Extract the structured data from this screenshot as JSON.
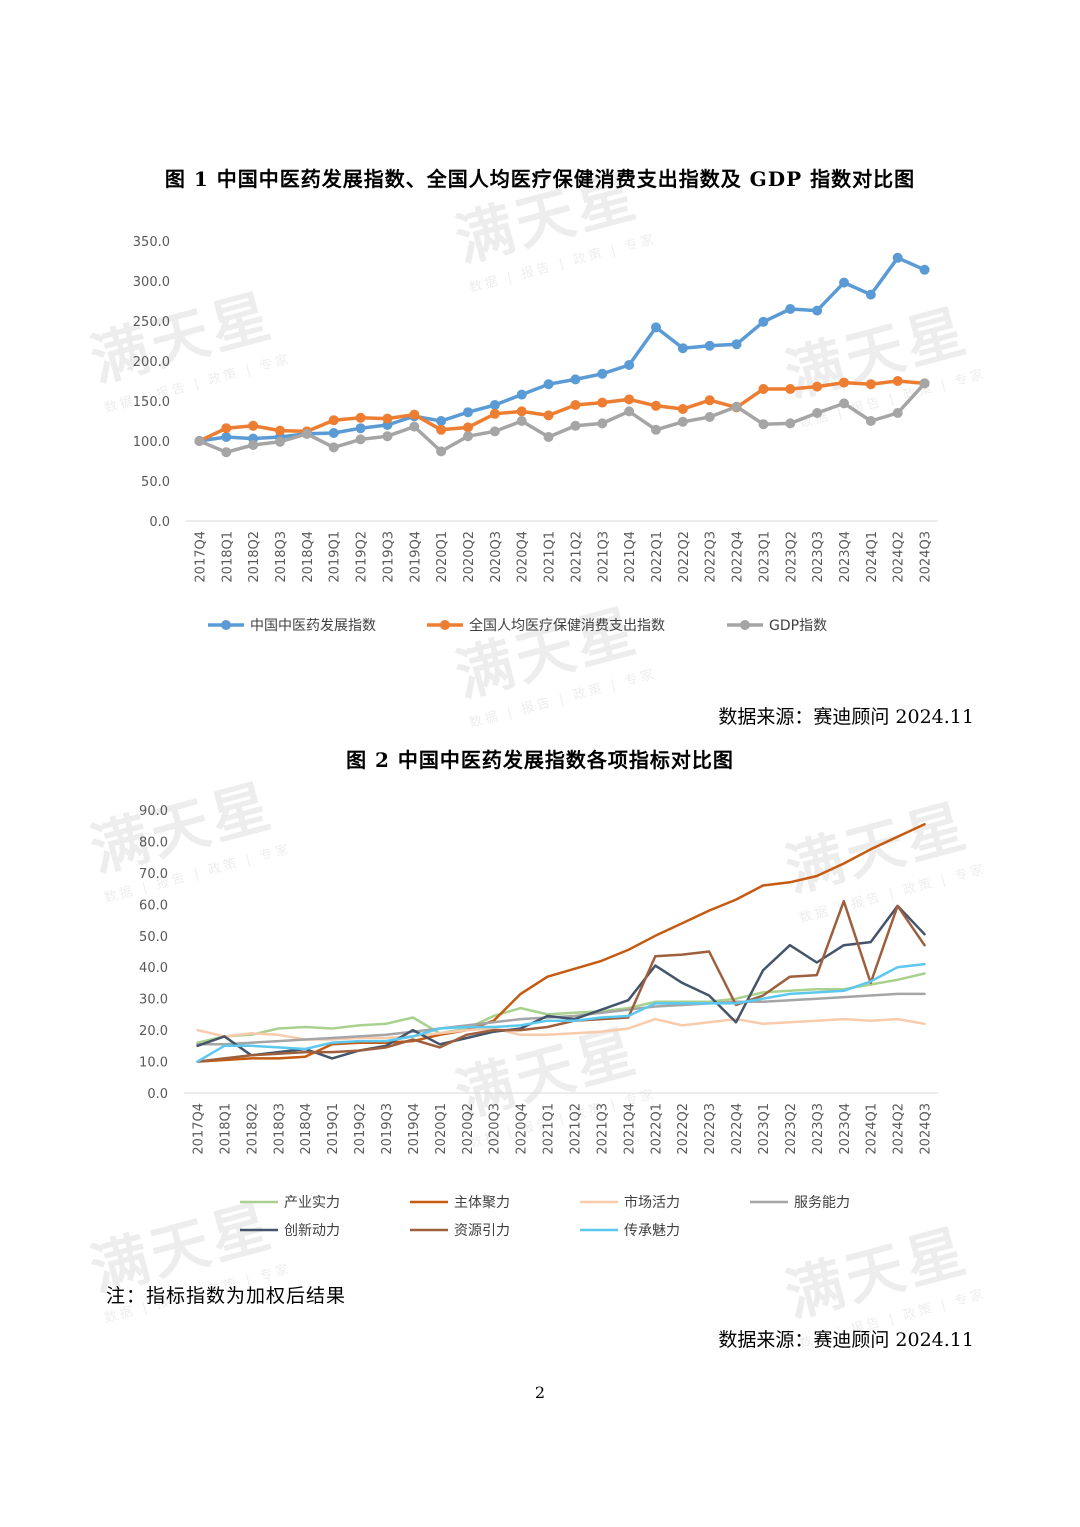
{
  "watermark": {
    "main": "满天星",
    "sub": "数据 | 报告 | 政策 | 专家"
  },
  "figure1": {
    "title": "图 1  中国中医药发展指数、全国人均医疗保健消费支出指数及 GDP 指数对比图",
    "source": "数据来源：赛迪顾问 2024.11"
  },
  "figure2": {
    "title": "图 2  中国中医药发展指数各项指标对比图",
    "note": "注：指标指数为加权后结果",
    "source": "数据来源：赛迪顾问 2024.11"
  },
  "page_number": "2",
  "chart_data": [
    {
      "type": "line",
      "title": "图 1  中国中医药发展指数、全国人均医疗保健消费支出指数及 GDP 指数对比图",
      "ylim": [
        0,
        350
      ],
      "yticks": [
        "0.0",
        "50.0",
        "100.0",
        "150.0",
        "200.0",
        "250.0",
        "300.0",
        "350.0"
      ],
      "ytick_values": [
        0,
        50,
        100,
        150,
        200,
        250,
        300,
        350
      ],
      "grid": "horizontal baseline only",
      "markers": true,
      "legend_position": "bottom",
      "categories": [
        "2017Q4",
        "2018Q1",
        "2018Q2",
        "2018Q3",
        "2018Q4",
        "2019Q1",
        "2019Q2",
        "2019Q3",
        "2019Q4",
        "2020Q1",
        "2020Q2",
        "2020Q3",
        "2020Q4",
        "2021Q1",
        "2021Q2",
        "2021Q3",
        "2021Q4",
        "2022Q1",
        "2022Q2",
        "2022Q3",
        "2022Q4",
        "2023Q1",
        "2023Q2",
        "2023Q3",
        "2023Q4",
        "2024Q1",
        "2024Q2",
        "2024Q3"
      ],
      "series": [
        {
          "name": "中国中医药发展指数",
          "color": "#5B9BD5",
          "values": [
            100,
            105,
            103,
            105,
            109,
            110,
            116,
            120,
            131,
            125,
            136,
            145,
            158,
            171,
            177,
            184,
            195,
            242,
            216,
            219,
            221,
            249,
            265,
            263,
            298,
            283,
            329,
            314
          ]
        },
        {
          "name": "全国人均医疗保健消费支出指数",
          "color": "#ED7D31",
          "values": [
            100,
            116,
            119,
            113,
            112,
            126,
            129,
            128,
            133,
            114,
            117,
            134,
            137,
            132,
            145,
            148,
            152,
            144,
            140,
            151,
            142,
            165,
            165,
            168,
            173,
            171,
            175,
            172
          ]
        },
        {
          "name": "GDP指数",
          "color": "#A5A5A5",
          "values": [
            100,
            86,
            95,
            99,
            109,
            92,
            102,
            106,
            118,
            87,
            106,
            112,
            125,
            105,
            119,
            122,
            137,
            114,
            124,
            130,
            143,
            121,
            122,
            135,
            147,
            125,
            135,
            172
          ]
        }
      ]
    },
    {
      "type": "line",
      "title": "图 2  中国中医药发展指数各项指标对比图",
      "ylim": [
        0,
        90
      ],
      "yticks": [
        "0.0",
        "10.0",
        "20.0",
        "30.0",
        "40.0",
        "50.0",
        "60.0",
        "70.0",
        "80.0",
        "90.0"
      ],
      "ytick_values": [
        0,
        10,
        20,
        30,
        40,
        50,
        60,
        70,
        80,
        90
      ],
      "grid": "horizontal baseline only",
      "markers": false,
      "legend_position": "bottom",
      "categories": [
        "2017Q4",
        "2018Q1",
        "2018Q2",
        "2018Q3",
        "2018Q4",
        "2019Q1",
        "2019Q2",
        "2019Q3",
        "2019Q4",
        "2020Q1",
        "2020Q2",
        "2020Q3",
        "2020Q4",
        "2021Q1",
        "2021Q2",
        "2021Q3",
        "2021Q4",
        "2022Q1",
        "2022Q2",
        "2022Q3",
        "2022Q4",
        "2023Q1",
        "2023Q2",
        "2023Q3",
        "2023Q4",
        "2024Q1",
        "2024Q2",
        "2024Q3"
      ],
      "series": [
        {
          "name": "产业实力",
          "color": "#A9D18E",
          "values": [
            16,
            18,
            18.5,
            20.5,
            21,
            20.5,
            21.5,
            22,
            24,
            19,
            20.5,
            24.5,
            27,
            25,
            25.5,
            26,
            27,
            29,
            29,
            29,
            30,
            32,
            32.5,
            33,
            33,
            34.5,
            36,
            38
          ]
        },
        {
          "name": "主体聚力",
          "color": "#C55A11",
          "values": [
            10,
            10.5,
            11,
            11,
            11.5,
            15.5,
            16,
            16,
            16.5,
            18.5,
            20,
            23,
            31.5,
            37,
            39.5,
            42,
            45.5,
            50,
            54,
            58,
            61.5,
            66,
            67,
            69,
            73,
            77.5,
            81.5,
            85.5
          ]
        },
        {
          "name": "市场活力",
          "color": "#F8CBAD",
          "values": [
            20,
            18,
            19,
            18.5,
            17,
            17,
            17.5,
            17.5,
            18,
            19,
            20,
            20.5,
            18.5,
            18.5,
            19,
            19.5,
            20.5,
            23.5,
            21.5,
            22.5,
            23.5,
            22,
            22.5,
            23,
            23.5,
            23,
            23.5,
            22
          ]
        },
        {
          "name": "服务能力",
          "color": "#A5A5A5",
          "values": [
            15.5,
            15.5,
            16,
            16.5,
            17,
            17.5,
            18,
            18.5,
            19.5,
            20.5,
            21.5,
            22.5,
            23.5,
            24,
            24.5,
            25.5,
            26.5,
            27.5,
            28,
            28.5,
            29,
            29,
            29.5,
            30,
            30.5,
            31,
            31.5,
            31.5
          ]
        },
        {
          "name": "创新动力",
          "color": "#44546A",
          "values": [
            15,
            18,
            12,
            13,
            14,
            11,
            13.5,
            15,
            20,
            15.5,
            17.5,
            19.5,
            20.5,
            24.5,
            23.5,
            26.5,
            29.5,
            40.5,
            35,
            31,
            22.5,
            39,
            47,
            41.5,
            47,
            48,
            59.5,
            50.5
          ]
        },
        {
          "name": "资源引力",
          "color": "#9E5F3D",
          "values": [
            10,
            11,
            12,
            12.5,
            13,
            13,
            13.5,
            14.5,
            17,
            14.5,
            18.5,
            20,
            20,
            21,
            23,
            23.5,
            24,
            43.5,
            44,
            45,
            28,
            31,
            37,
            37.5,
            61,
            35,
            59.5,
            47
          ]
        },
        {
          "name": "传承魅力",
          "color": "#5BC8F0",
          "values": [
            10,
            15,
            15,
            14.5,
            14,
            16,
            16.5,
            16.5,
            18,
            20.5,
            21,
            21,
            21.5,
            23,
            23,
            24,
            24.5,
            28.5,
            28.5,
            28.5,
            28.5,
            30,
            31.5,
            32,
            32.5,
            35.5,
            40,
            41
          ]
        }
      ]
    }
  ]
}
